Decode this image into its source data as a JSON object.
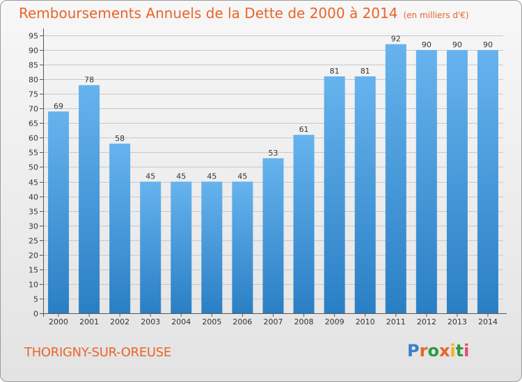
{
  "header": {
    "title": "Remboursements Annuels de la Dette de 2000 à 2014",
    "unit": "(en milliers d'€)"
  },
  "footer": {
    "commune": "THORIGNY-SUR-OREUSE",
    "logo_text": "Proxiti"
  },
  "colors": {
    "title": "#e8642a",
    "bar_light": "#66b3ee",
    "bar_dark": "#2a7fc4",
    "logo": [
      "#3a7fc8",
      "#e8642a",
      "#2a9b3e",
      "#e8642a",
      "#f2b01e",
      "#2a9b3e",
      "#e84a6a"
    ]
  },
  "chart_data": {
    "type": "bar",
    "title": "Remboursements Annuels de la Dette de 2000 à 2014",
    "subtitle": "(en milliers d'€)",
    "categories": [
      "2000",
      "2001",
      "2002",
      "2003",
      "2004",
      "2005",
      "2006",
      "2007",
      "2008",
      "2009",
      "2010",
      "2011",
      "2012",
      "2013",
      "2014"
    ],
    "values": [
      69,
      78,
      58,
      45,
      45,
      45,
      45,
      53,
      61,
      81,
      81,
      92,
      90,
      90,
      90
    ],
    "y_ticks": [
      "0",
      "5",
      "10",
      "15",
      "20",
      "25",
      "30",
      "35",
      "40",
      "45",
      "50",
      "55",
      "60",
      "65",
      "70",
      "75",
      "80",
      "85",
      "90",
      "95"
    ],
    "ylim": [
      0,
      95
    ],
    "grid": true,
    "xlabel": "",
    "ylabel": ""
  }
}
